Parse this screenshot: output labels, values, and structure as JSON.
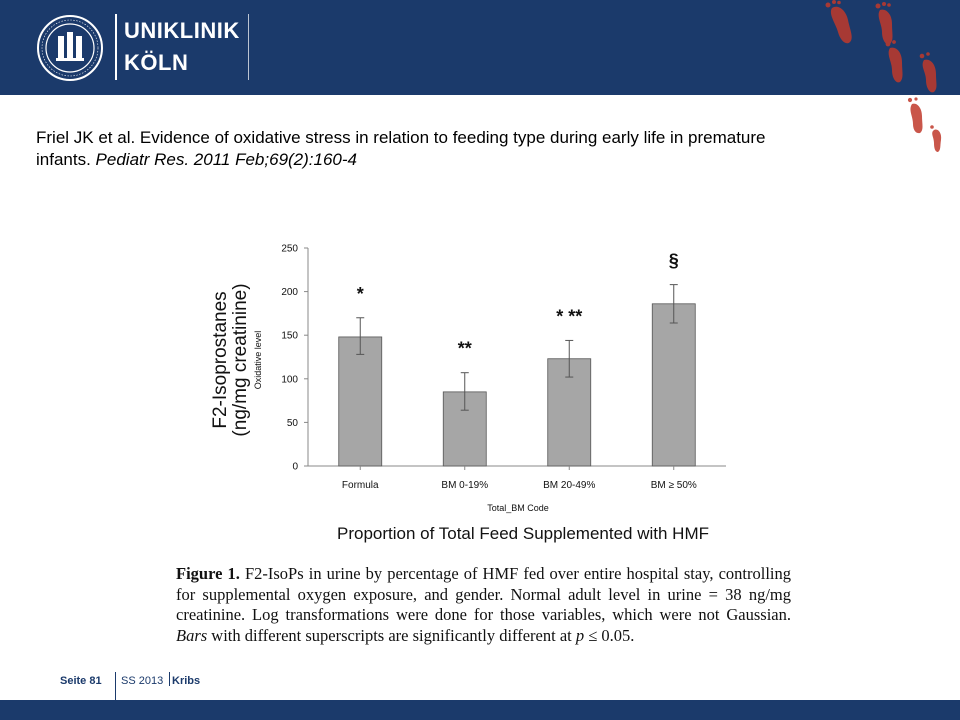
{
  "header": {
    "logo_line1": "UNIKLINIK",
    "logo_line2": "KÖLN",
    "brand_color": "#1b3a6b",
    "feet_color": "#c0392b"
  },
  "citation": {
    "text": "Friel JK et al. Evidence of oxidative stress in relation to feeding type during early life in premature infants.",
    "journal": "Pediatr Res. 2011 Feb;69(2):160-4"
  },
  "chart_data": {
    "type": "bar",
    "categories": [
      "Formula",
      "BM 0-19%",
      "BM 20-49%",
      "BM ≥ 50%"
    ],
    "values": [
      148,
      85,
      123,
      186
    ],
    "error_low": [
      128,
      64,
      102,
      164
    ],
    "error_high": [
      170,
      107,
      144,
      208
    ],
    "significance": [
      "*",
      "**",
      "* **",
      "§"
    ],
    "ylim": [
      0,
      250
    ],
    "yticks": [
      0,
      50,
      100,
      150,
      200,
      250
    ],
    "ylabel_main_line1": "F2-Isoprostanes",
    "ylabel_main_line2": "(ng/mg creatinine)",
    "ylabel_inner": "Oxidative level",
    "xlabel_inner": "Total_BM Code",
    "xlabel_main": "Proportion of Total Feed Supplemented with HMF",
    "bar_color": "#a6a6a6"
  },
  "caption": {
    "label": "Figure 1.",
    "text_a": "F2-IsoPs in urine by percentage of HMF fed over entire hospital stay, controlling for supplemental oxygen exposure, and gender. Normal adult level in urine = 38 ng/mg creatinine. Log transformations were done for those variables, which were not Gaussian.",
    "bars_word": "Bars",
    "text_b": "with different superscripts are significantly different at",
    "p_symbol": "p",
    "text_c": "≤ 0.05."
  },
  "footer": {
    "page": "Seite 81",
    "term": "SS 2013",
    "author": "Kribs"
  }
}
